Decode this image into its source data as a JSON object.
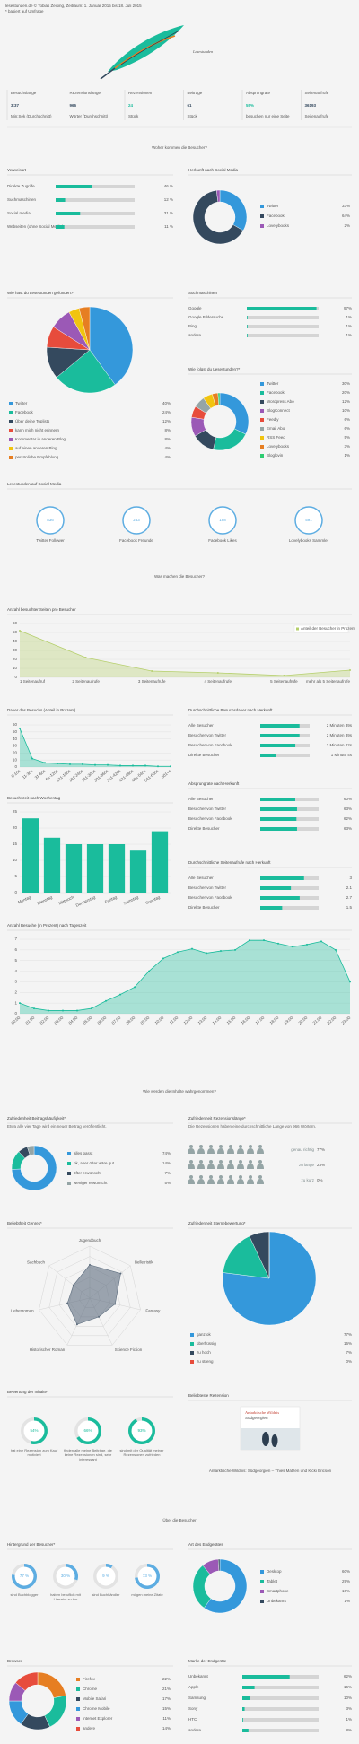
{
  "header": {
    "source": "lesestunden.de © Tobias Zeising, Zeitraum: 1. Januar 2015 bis 18. Juli 2015",
    "note": "* basiert auf Umfrage",
    "logo": "Lesestunden"
  },
  "stats": [
    {
      "label": "Besuchslänge",
      "value": "3:37",
      "unit": "Min:Sek (Durchschnitt)",
      "color": "#34495e"
    },
    {
      "label": "Rezensionslänge",
      "value": "966",
      "unit": "Wörter (Durchschnitt)",
      "color": "#34495e"
    },
    {
      "label": "Rezensionen",
      "value": "24",
      "unit": "Stück",
      "color": "#1abc9c"
    },
    {
      "label": "Beiträge",
      "value": "61",
      "unit": "Stück",
      "color": "#34495e"
    },
    {
      "label": "Absprungrate",
      "value": "55%",
      "unit": "besuchen nur eine Seite",
      "color": "#1abc9c"
    },
    {
      "label": "Seitenaufrufe",
      "value": "36193",
      "unit": "Seitenaufrufe",
      "color": "#34495e"
    }
  ],
  "headings": [
    "Woher kommen die Besucher?",
    "Was machen die Besucher?",
    "Wie werden die Inhalte wahrgenommen?",
    "Über die Besucher"
  ],
  "featured": {
    "title": "Beliebteste Rezension",
    "book_title": "Antarktische Wildnis",
    "book_subtitle": "Südgeorgien",
    "caption": "Antarktische Wildnis: Südgeorgien – Thies Matzen und Kicki Ericson"
  },
  "chart_data": [
    {
      "type": "hbar",
      "title": "Verweisart",
      "categories": [
        "Direkte Zugriffe",
        "Suchmaschinen",
        "Social media",
        "Webseiten (ohne Social Media)"
      ],
      "values": [
        46,
        12,
        31,
        11
      ],
      "value_labels": [
        "46 %",
        "12 %",
        "31 %",
        "11 %"
      ],
      "xlim": [
        0,
        100
      ],
      "color": "#1abc9c"
    },
    {
      "type": "pie",
      "donut": true,
      "title": "Herkunft nach Social Media",
      "categories": [
        "Twitter",
        "Facebook",
        "Lovelybooks"
      ],
      "values": [
        33,
        64,
        2
      ],
      "value_labels": [
        "33%",
        "64%",
        "2%"
      ],
      "colors": [
        "#3498db",
        "#34495e",
        "#9b59b6"
      ]
    },
    {
      "type": "pie",
      "donut": false,
      "title": "Wie hast du Lesestunden gefunden?*",
      "categories": [
        "Twitter",
        "Facebook",
        "Über deine Toplists",
        "kann mich nicht erinnern",
        "Kommentar in anderen Blog",
        "auf einen anderen Blog",
        "persönliche Empfehlung"
      ],
      "values": [
        40,
        24,
        12,
        8,
        8,
        4,
        4
      ],
      "value_labels": [
        "40%",
        "24%",
        "12%",
        "8%",
        "8%",
        "4%",
        "4%"
      ],
      "colors": [
        "#3498db",
        "#1abc9c",
        "#34495e",
        "#e74c3c",
        "#9b59b6",
        "#f1c40f",
        "#e67e22"
      ]
    },
    {
      "type": "hbar",
      "title": "Suchmaschinen",
      "categories": [
        "Google",
        "Google Bildersuche",
        "Bing",
        "andere"
      ],
      "values": [
        97,
        1,
        1,
        1
      ],
      "value_labels": [
        "97%",
        "1%",
        "1%",
        "1%"
      ],
      "xlim": [
        0,
        100
      ],
      "color": "#1abc9c"
    },
    {
      "type": "pie",
      "donut": true,
      "title": "Wie folgst du Lesestunden?*",
      "categories": [
        "Twitter",
        "Facebook",
        "Wordpress Abo",
        "BlogConnect",
        "Feedly",
        "Email Abo",
        "RSS Feed",
        "Lovelybooks",
        "Bloglovin"
      ],
      "values": [
        30,
        20,
        12,
        10,
        6,
        6,
        5,
        3,
        1
      ],
      "value_labels": [
        "30%",
        "20%",
        "12%",
        "10%",
        "6%",
        "6%",
        "5%",
        "3%",
        "1%"
      ],
      "colors": [
        "#3498db",
        "#1abc9c",
        "#34495e",
        "#9b59b6",
        "#e74c3c",
        "#95a5a6",
        "#f1c40f",
        "#e67e22",
        "#2ecc71"
      ]
    },
    {
      "type": "counters",
      "title": "Lesestunden auf Social Media",
      "categories": [
        "Twitter Follower",
        "Facebook Freunde",
        "Facebook Likes",
        "Lovelybooks Sammler"
      ],
      "values": [
        836,
        263,
        198,
        591
      ],
      "color": "#5dade2"
    },
    {
      "type": "line",
      "title": "Anzahl besuchter Seiten pro Besucher",
      "legend_label": "Anteil der Besucher in Prozent",
      "categories": [
        "1 Seitenaufruf",
        "2 Seitenaufrufe",
        "3 Seitenaufrufe",
        "4 Seitenaufrufe",
        "5 Seitenaufrufe",
        "mehr als 5 Seitenaufrufe"
      ],
      "values": [
        52,
        22,
        7,
        5,
        2,
        8
      ],
      "ylim": [
        0,
        60
      ],
      "yticks": [
        0,
        10,
        20,
        30,
        40,
        50,
        60
      ],
      "color": "#b5cf6b",
      "grid": true
    },
    {
      "type": "line",
      "title": "Dauer des Besuchs (Anteil in Prozent)",
      "categories": [
        "0-10s",
        "11-30s",
        "31-60s",
        "61-120s",
        "121-180s",
        "181-240s",
        "241-300s",
        "301-360s",
        "361-420s",
        "421-480s",
        "481-540s",
        "541-600s",
        "601+s"
      ],
      "values": [
        55,
        12,
        6,
        5,
        4,
        4,
        3,
        3,
        2,
        2,
        2,
        1,
        1
      ],
      "ylim": [
        0,
        60
      ],
      "yticks": [
        0,
        10,
        20,
        30,
        40,
        50,
        60
      ],
      "color": "#1abc9c",
      "grid": true
    },
    {
      "type": "hbar",
      "title": "Durchschnittliche Besuchsdauer nach Herkunft",
      "categories": [
        "Alle Besucher",
        "Besucher von Twitter",
        "Besucher von Facebook",
        "Direkte Besucher"
      ],
      "values": [
        159,
        159,
        142,
        64
      ],
      "value_labels": [
        "2 Minuten 39s",
        "2 Minuten 39s",
        "2 Minuten 22s",
        "1 Minute 4s"
      ],
      "xlim": [
        0,
        200
      ],
      "color": "#1abc9c"
    },
    {
      "type": "hbar",
      "title": "Absprungrate nach Herkunft",
      "categories": [
        "Alle Besucher",
        "Besucher von Twitter",
        "Besucher von Facebook",
        "Direkte Besucher"
      ],
      "values": [
        60,
        63,
        62,
        63
      ],
      "value_labels": [
        "60%",
        "63%",
        "62%",
        "63%"
      ],
      "xlim": [
        0,
        100
      ],
      "color": "#1abc9c"
    },
    {
      "type": "column",
      "title": "Besuchszeit nach Wochentag",
      "categories": [
        "Montag",
        "Dienstag",
        "Mittwoch",
        "Donnerstag",
        "Freitag",
        "Samstag",
        "Sonntag"
      ],
      "values": [
        23,
        17,
        15,
        15,
        15,
        13,
        19
      ],
      "ylim": [
        0,
        25
      ],
      "yticks": [
        0,
        5,
        10,
        15,
        20,
        25
      ],
      "color": "#1abc9c",
      "grid": true
    },
    {
      "type": "hbar",
      "title": "Durchschnittliche Seitenaufrufe nach Herkunft",
      "categories": [
        "Alle Besucher",
        "Besucher von Twitter",
        "Besucher von Facebook",
        "Direkte Besucher"
      ],
      "values": [
        3,
        2.1,
        2.7,
        1.5
      ],
      "xlim": [
        0,
        4
      ],
      "color": "#1abc9c"
    },
    {
      "type": "line",
      "title": "Anzahl Besuche (in Prozent) nach Tageszeit",
      "categories": [
        "00:00",
        "01:00",
        "02:00",
        "03:00",
        "04:00",
        "05:00",
        "06:00",
        "07:00",
        "08:00",
        "09:00",
        "10:00",
        "11:00",
        "12:00",
        "13:00",
        "14:00",
        "15:00",
        "16:00",
        "17:00",
        "18:00",
        "19:00",
        "20:00",
        "21:00",
        "22:00",
        "23:00"
      ],
      "values": [
        1,
        0.5,
        0.3,
        0.3,
        0.3,
        0.5,
        1.2,
        1.8,
        2.5,
        4,
        5.2,
        5.8,
        6.1,
        5.7,
        5.9,
        6,
        6.9,
        6.9,
        6.6,
        6.3,
        6.5,
        6.8,
        6,
        3
      ],
      "ylim": [
        0,
        7
      ],
      "yticks": [
        0,
        1,
        2,
        3,
        4,
        5,
        6,
        7
      ],
      "color": "#1abc9c",
      "grid": true
    },
    {
      "type": "pie",
      "donut": true,
      "title": "Zufriedenheit Beitragshäufigkeit*",
      "subtitle": "Etwa alle vier Tage wird ein neuer Beitrag veröffentlicht.",
      "categories": [
        "alles passt",
        "ok, aber öfter wäre gut",
        "öfter erwünscht",
        "weniger erwünscht"
      ],
      "values": [
        74,
        14,
        7,
        5
      ],
      "value_labels": [
        "74%",
        "14%",
        "7%",
        "5%"
      ],
      "colors": [
        "#3498db",
        "#1abc9c",
        "#34495e",
        "#95a5a6"
      ]
    },
    {
      "type": "icons",
      "title": "Zufriedenheit Rezensionslänge*",
      "subtitle": "Die Rezensionen haben eine durchschnittliche Länge von 966 Wörtern.",
      "categories": [
        "genau richtig",
        "zu lange",
        "zu kurz"
      ],
      "values": [
        77,
        23,
        0
      ],
      "value_labels": [
        "77%",
        "23%",
        "0%"
      ],
      "color": "#95a5a6"
    },
    {
      "type": "radar",
      "title": "Beliebtheit Genres*",
      "categories": [
        "Jugendbuch",
        "Belletristik",
        "Fantasy",
        "Science Fiction",
        "Historischer Roman",
        "Liebesroman",
        "Sachbuch"
      ],
      "values": [
        3.2,
        3.8,
        2.5,
        2,
        2.8,
        2.2,
        2
      ],
      "rlim": [
        0,
        5
      ],
      "rticks": [
        1,
        2,
        3,
        4,
        5
      ],
      "color": "#5d6d7e"
    },
    {
      "type": "pie",
      "donut": false,
      "title": "Zufriedenheit Sternebewertung*",
      "categories": [
        "ganz ok",
        "überflüssig",
        "zu hoch",
        "zu streng"
      ],
      "values": [
        77,
        16,
        7,
        0
      ],
      "value_labels": [
        "77%",
        "16%",
        "7%",
        "0%"
      ],
      "colors": [
        "#3498db",
        "#1abc9c",
        "#34495e",
        "#e74c3c"
      ]
    },
    {
      "type": "rings",
      "title": "Bewertung der Inhalte*",
      "categories": [
        "hat eine Rezension zum Kauf motiviert",
        "finden alle meine Beiträge, die keine Rezensionen sind, sehr interessant",
        "sind mit der Qualität meiner Rezensionen zufrieden"
      ],
      "values": [
        54,
        66,
        93
      ],
      "value_labels": [
        "54%",
        "66%",
        "93%"
      ],
      "lim": [
        0,
        100
      ],
      "color": "#1abc9c"
    },
    {
      "type": "rings",
      "title": "Hintergrund der Besucher*",
      "categories": [
        "sind Buchblogger",
        "haben beruflich mit Literatur zu tun",
        "sind Buchhändler",
        "mögen meine Zitate"
      ],
      "values": [
        77,
        30,
        9,
        73
      ],
      "value_labels": [
        "77 %",
        "30 %",
        "9 %",
        "73 %"
      ],
      "lim": [
        0,
        100
      ],
      "color": "#5dade2"
    },
    {
      "type": "pie",
      "donut": true,
      "title": "Art des Endgerätes",
      "categories": [
        "Desktop",
        "Tablet",
        "Smartphone",
        "Unbekannt"
      ],
      "values": [
        60,
        29,
        10,
        1
      ],
      "value_labels": [
        "60%",
        "29%",
        "10%",
        "1%"
      ],
      "colors": [
        "#3498db",
        "#1abc9c",
        "#9b59b6",
        "#34495e"
      ]
    },
    {
      "type": "pie",
      "donut": true,
      "title": "Browser",
      "categories": [
        "Firefox",
        "Chrome",
        "Mobile Safari",
        "Chrome Mobile",
        "Internet Explorer",
        "andere"
      ],
      "values": [
        22,
        21,
        17,
        15,
        11,
        14
      ],
      "value_labels": [
        "22%",
        "21%",
        "17%",
        "15%",
        "11%",
        "14%"
      ],
      "colors": [
        "#e67e22",
        "#1abc9c",
        "#34495e",
        "#3498db",
        "#9b59b6",
        "#e74c3c"
      ]
    },
    {
      "type": "hbar",
      "title": "Marke der Endgeräte",
      "categories": [
        "Unbekannt",
        "Apple",
        "Samsung",
        "Sony",
        "HTC",
        "andere"
      ],
      "values": [
        62,
        16,
        10,
        3,
        1,
        8
      ],
      "value_labels": [
        "62%",
        "16%",
        "10%",
        "3%",
        "1%",
        "8%"
      ],
      "xlim": [
        0,
        100
      ],
      "color": "#1abc9c"
    }
  ]
}
